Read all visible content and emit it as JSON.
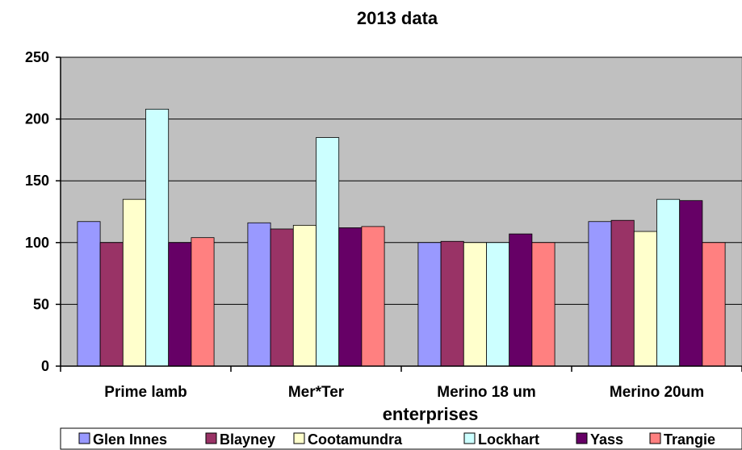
{
  "chart_data": {
    "type": "bar",
    "title": "2013 data",
    "xlabel": "enterprises",
    "ylabel": "",
    "ylim": [
      0,
      250
    ],
    "yticks": [
      0,
      50,
      100,
      150,
      200,
      250
    ],
    "grid": true,
    "legend_position": "bottom",
    "plot_background": "#c0c0c0",
    "categories": [
      "Prime lamb",
      "Mer*Ter",
      "Merino 18 um",
      "Merino 20um"
    ],
    "series": [
      {
        "name": "Glen Innes",
        "color": "#9999ff",
        "values": [
          117,
          116,
          100,
          117
        ]
      },
      {
        "name": "Blayney",
        "color": "#993366",
        "values": [
          100,
          111,
          101,
          118
        ]
      },
      {
        "name": "Cootamundra",
        "color": "#ffffcc",
        "values": [
          135,
          114,
          100,
          109
        ]
      },
      {
        "name": "Lockhart",
        "color": "#ccffff",
        "values": [
          208,
          185,
          100,
          135
        ]
      },
      {
        "name": "Yass",
        "color": "#660066",
        "values": [
          100,
          112,
          107,
          134
        ]
      },
      {
        "name": "Trangie",
        "color": "#ff8080",
        "values": [
          104,
          113,
          100,
          100
        ]
      }
    ]
  }
}
